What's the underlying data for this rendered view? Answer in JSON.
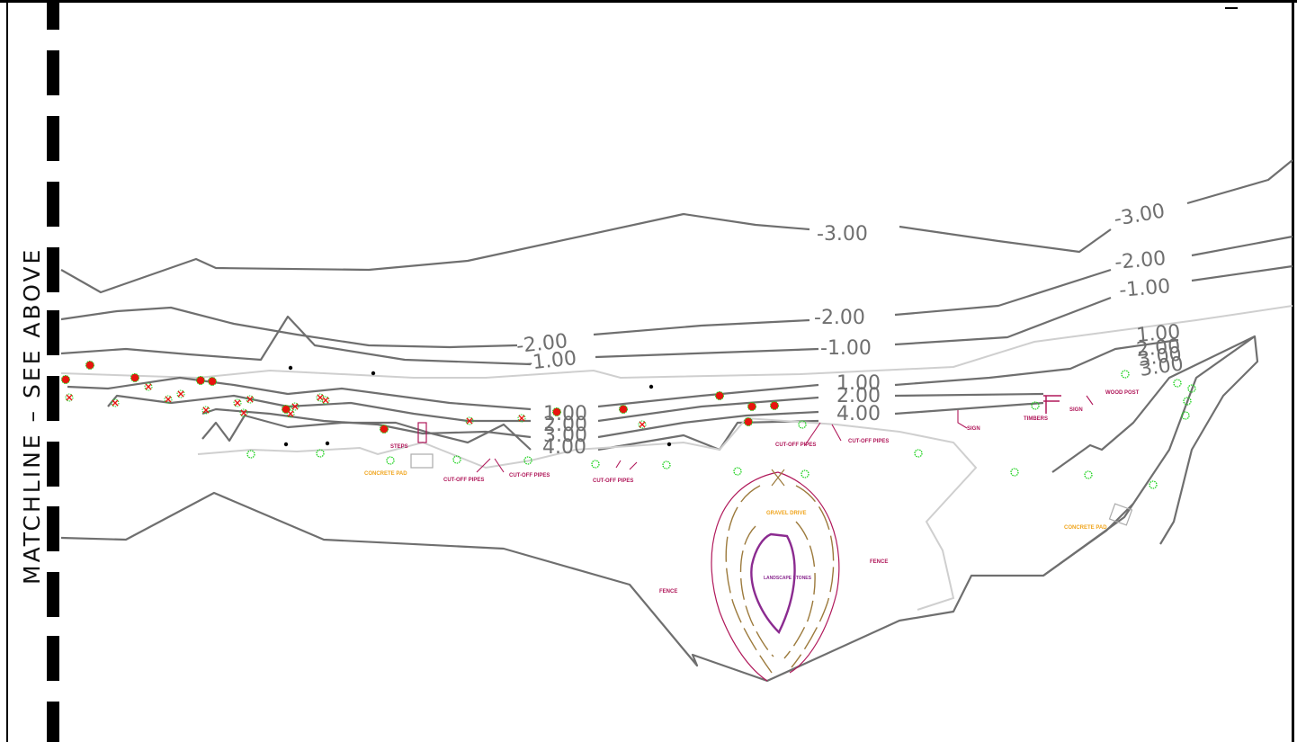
{
  "matchline_text": "MATCHLINE  –  SEE ABOVE",
  "contour_labels": {
    "neg3_center": "-3.00",
    "neg3_right": "-3.00",
    "neg2_left": "-2.00",
    "neg2_center": "-2.00",
    "neg2_right": "-2.00",
    "neg1_left": "-1.00",
    "neg1_center": "-1.00",
    "neg1_right": "-1.00",
    "pos1_left": "1.00",
    "pos1_center": "1.00",
    "pos1_right": "1.00",
    "pos2_left": "2.00",
    "pos2_center": "2.00",
    "pos2_right": "2.00",
    "pos3_left": "3.00",
    "pos3_right_a": "3.00",
    "pos3_right_b": "3.00",
    "pos4_left": "4.00",
    "pos4_center": "4.00"
  },
  "annotations": {
    "steps": "STEPS",
    "concrete_pad_left": "CONCRETE PAD",
    "concrete_pad_right": "CONCRETE PAD",
    "cut_off_pipes": "CUT-OFF PIPES",
    "fence": "FENCE",
    "gravel_drive": "GRAVEL DRIVE",
    "landscape_stones": "LANDSCAPE STONES",
    "sign": "SIGN",
    "timbers": "TIMBERS",
    "wood_post": "WOOD POST"
  },
  "colors": {
    "contour": "#6f6f6f",
    "contour_light": "#cfcfcf",
    "tree_green": "#19d119",
    "tree_red": "#e8140f",
    "feature_magenta": "#b0185a",
    "feature_orange": "#f0a51e",
    "gravel_olive": "#9c7a3c",
    "stones_purple": "#8b2b90",
    "border": "#000000"
  }
}
